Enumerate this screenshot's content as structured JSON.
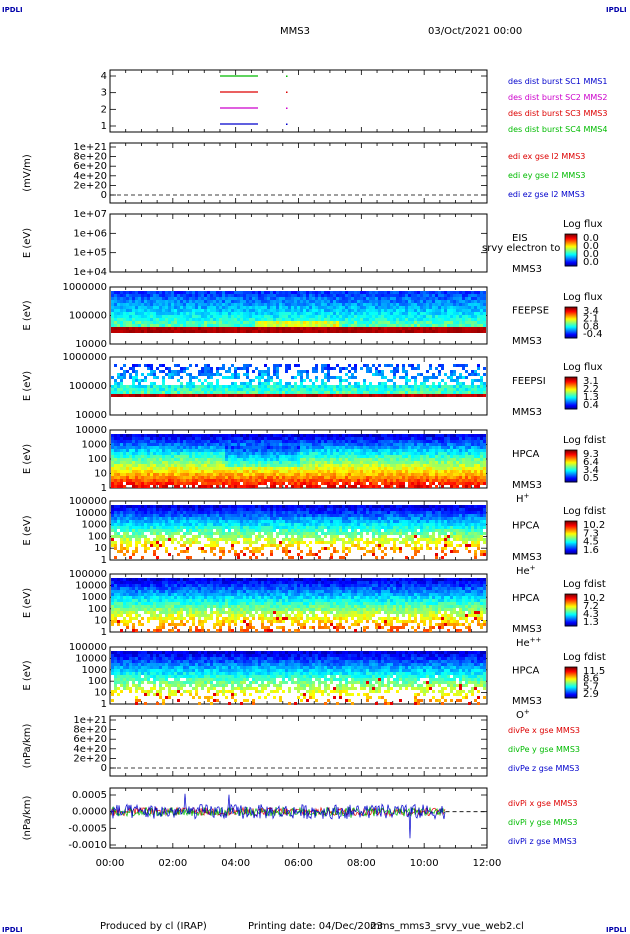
{
  "corners": {
    "tl": "IPDLI",
    "tr": "IPDLI",
    "bl": "IPDLI",
    "br": "IPDLI"
  },
  "header": {
    "title": "MMS3",
    "datetime": "03/Oct/2021 00:00"
  },
  "footer": {
    "produced": "Produced by cl (IRAP)",
    "printing": "Printing date: 04/Dec/2023",
    "file": "mms_mms3_srvy_vue_web2.cl"
  },
  "time_axis": {
    "ticks": [
      "00:00",
      "02:00",
      "04:00",
      "06:00",
      "08:00",
      "10:00",
      "12:00"
    ]
  },
  "colors": {
    "red": "#dd0000",
    "green": "#00bb00",
    "blue": "#0000cc",
    "magenta": "#cc00cc"
  },
  "chart_data": [
    {
      "id": "p1",
      "type": "line",
      "ylabel": "",
      "yticks": [
        "4",
        "3",
        "2",
        "1"
      ],
      "legend": [
        {
          "text": "des dist burst SC1 MMS1",
          "color": "#0000cc"
        },
        {
          "text": "des dist burst SC2 MMS2",
          "color": "#cc00cc"
        },
        {
          "text": "des dist burst SC3 MMS3",
          "color": "#dd0000"
        },
        {
          "text": "des dist burst SC4 MMS4",
          "color": "#00bb00"
        }
      ]
    },
    {
      "id": "p2",
      "type": "line",
      "ylabel": "(mV/m)",
      "yticks": [
        "1e+21",
        "8e+20",
        "6e+20",
        "4e+20",
        "2e+20",
        "0"
      ],
      "legend": [
        {
          "text": "edi ex gse l2 MMS3",
          "color": "#dd0000"
        },
        {
          "text": "edi ey gse l2 MMS3",
          "color": "#00bb00"
        },
        {
          "text": "edi ez gse l2 MMS3",
          "color": "#0000cc"
        }
      ]
    },
    {
      "id": "p3",
      "type": "heatmap",
      "ylabel": "E (eV)",
      "yticks": [
        "1e+07",
        "1e+06",
        "1e+05",
        "1e+04"
      ],
      "label1": "EIS",
      "label2": "srvy electron to",
      "label3": "MMS3",
      "cbar_title": "Log flux",
      "cbar_ticks": [
        "0.0",
        "0.0",
        "0.0",
        "0.0"
      ]
    },
    {
      "id": "p4",
      "type": "heatmap",
      "ylabel": "E (eV)",
      "yticks": [
        "1000000",
        "100000",
        "10000"
      ],
      "label1": "FEEPSE",
      "label3": "MMS3",
      "cbar_title": "Log flux",
      "cbar_ticks": [
        "3.4",
        "2.1",
        "0.8",
        "-0.4"
      ]
    },
    {
      "id": "p5",
      "type": "heatmap",
      "ylabel": "E (eV)",
      "yticks": [
        "1000000",
        "100000",
        "10000"
      ],
      "label1": "FEEPSI",
      "label3": "MMS3",
      "cbar_title": "Log flux",
      "cbar_ticks": [
        "3.1",
        "2.2",
        "1.3",
        "0.4"
      ]
    },
    {
      "id": "p6",
      "type": "heatmap",
      "ylabel": "E (eV)",
      "yticks": [
        "10000",
        "1000",
        "100",
        "10",
        "1"
      ],
      "label1": "HPCA",
      "label3": "MMS3",
      "species": "H",
      "species_sup": "+",
      "cbar_title": "Log fdist",
      "cbar_ticks": [
        "9.3",
        "6.4",
        "3.4",
        "0.5"
      ]
    },
    {
      "id": "p7",
      "type": "heatmap",
      "ylabel": "E (eV)",
      "yticks": [
        "100000",
        "10000",
        "1000",
        "100",
        "10",
        "1"
      ],
      "label1": "HPCA",
      "label3": "MMS3",
      "species": "He",
      "species_sup": "+",
      "cbar_title": "Log fdist",
      "cbar_ticks": [
        "10.2",
        "7.3",
        "4.5",
        "1.6"
      ]
    },
    {
      "id": "p8",
      "type": "heatmap",
      "ylabel": "E (eV)",
      "yticks": [
        "100000",
        "10000",
        "1000",
        "100",
        "10",
        "1"
      ],
      "label1": "HPCA",
      "label3": "MMS3",
      "species": "He",
      "species_sup": "++",
      "cbar_title": "Log fdist",
      "cbar_ticks": [
        "10.2",
        "7.2",
        "4.3",
        "1.3"
      ]
    },
    {
      "id": "p9",
      "type": "heatmap",
      "ylabel": "E (eV)",
      "yticks": [
        "100000",
        "10000",
        "1000",
        "100",
        "10",
        "1"
      ],
      "label1": "HPCA",
      "label3": "MMS3",
      "species": "O",
      "species_sup": "+",
      "cbar_title": "Log fdist",
      "cbar_ticks": [
        "11.5",
        "8.6",
        "5.7",
        "2.9"
      ]
    },
    {
      "id": "p10",
      "type": "line",
      "ylabel": "(nPa/km)",
      "yticks": [
        "1e+21",
        "8e+20",
        "6e+20",
        "4e+20",
        "2e+20",
        "0"
      ],
      "legend": [
        {
          "text": "divPe x gse MMS3",
          "color": "#dd0000"
        },
        {
          "text": "divPe y gse MMS3",
          "color": "#00bb00"
        },
        {
          "text": "divPe z gse MMS3",
          "color": "#0000cc"
        }
      ]
    },
    {
      "id": "p11",
      "type": "line",
      "ylabel": "(nPa/km)",
      "yticks": [
        "0.0005",
        "0.0000",
        "-0.0005",
        "-0.0010"
      ],
      "ylim": [
        -0.001,
        0.0006
      ],
      "legend": [
        {
          "text": "divPi x gse MMS3",
          "color": "#dd0000"
        },
        {
          "text": "divPi y gse MMS3",
          "color": "#00bb00"
        },
        {
          "text": "divPi z gse MMS3",
          "color": "#0000cc"
        }
      ]
    }
  ]
}
